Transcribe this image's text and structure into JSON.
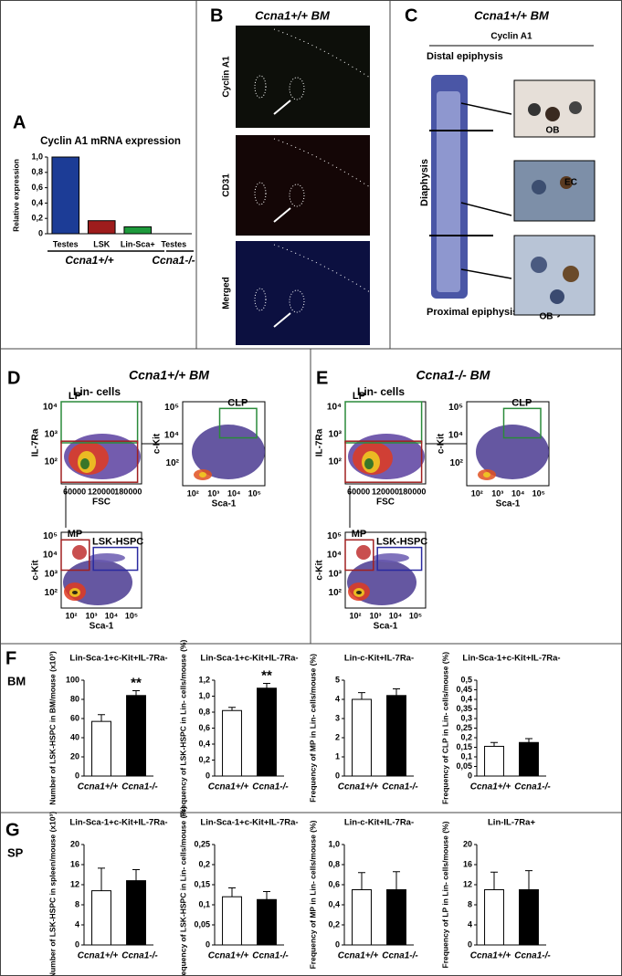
{
  "panel_labels": [
    "A",
    "B",
    "C",
    "D",
    "E",
    "F",
    "G"
  ],
  "row_labels": [
    "BM",
    "SP"
  ],
  "panel_A": {
    "group_labels": [
      "Ccna1+/+",
      "Ccna1-/-"
    ]
  },
  "panel_B": {
    "title": "Ccna1+/+ BM",
    "image_labels": [
      "Cyclin A1",
      "CD31",
      "Merged"
    ]
  },
  "panel_C": {
    "title": "Ccna1+/+ BM",
    "subtitle": "Cyclin A1",
    "regions": [
      "Distal epiphysis",
      "Diaphysis",
      "Proximal epiphysis metaphysis"
    ],
    "insets": [
      "OB",
      "EC",
      "OB"
    ]
  },
  "panel_D": {
    "title": "Ccna1+/+ BM",
    "population": "Lin- cells",
    "plots": [
      {
        "gates": [
          "LP"
        ],
        "ylabel": "IL-7Ra",
        "xlabel": "FSC",
        "yticks": [
          "10⁴",
          "10³",
          "10²"
        ],
        "xticks": [
          "60000",
          "120000",
          "180000"
        ]
      },
      {
        "gates": [
          "CLP"
        ],
        "ylabel": "c-Kit",
        "xlabel": "Sca-1",
        "yticks": [
          "10⁵",
          "10⁴",
          "10²"
        ],
        "xticks": [
          "10²",
          "10³",
          "10⁴",
          "10⁵"
        ]
      },
      {
        "gates": [
          "MP",
          "LSK-HSPC"
        ],
        "ylabel": "c-Kit",
        "xlabel": "Sca-1",
        "yticks": [
          "10⁵",
          "10⁴",
          "10³",
          "10²"
        ],
        "xticks": [
          "10²",
          "10³",
          "10⁴",
          "10⁵"
        ]
      }
    ]
  },
  "panel_E": {
    "title": "Ccna1-/- BM",
    "population": "Lin- cells",
    "plots": [
      {
        "gates": [
          "LP"
        ],
        "ylabel": "IL-7Ra",
        "xlabel": "FSC",
        "yticks": [
          "10⁴",
          "10³",
          "10²"
        ],
        "xticks": [
          "60000",
          "120000",
          "180000"
        ]
      },
      {
        "gates": [
          "CLP"
        ],
        "ylabel": "c-Kit",
        "xlabel": "Sca-1",
        "yticks": [
          "10⁵",
          "10⁴",
          "10²"
        ],
        "xticks": [
          "10²",
          "10³",
          "10⁴",
          "10⁵"
        ]
      },
      {
        "gates": [
          "MP",
          "LSK-HSPC"
        ],
        "ylabel": "c-Kit",
        "xlabel": "Sca-1",
        "yticks": [
          "10⁵",
          "10⁴",
          "10³",
          "10²"
        ],
        "xticks": [
          "10²",
          "10³",
          "10⁴",
          "10⁵"
        ]
      }
    ]
  },
  "chart_data": [
    {
      "type": "bar",
      "title": "Cyclin A1 mRNA expression",
      "y_label": "Relative expression",
      "categories": [
        "Testes",
        "LSK",
        "Lin-Sca+",
        "Testes"
      ],
      "values": [
        1.0,
        0.17,
        0.09,
        0
      ],
      "colors": [
        "#1c3c96",
        "#9e1c1c",
        "#1e9a3c",
        "#555555"
      ],
      "ylim": [
        0,
        1
      ],
      "yticks": [
        0,
        {
          "value": 0.2,
          "label": "0,2"
        },
        {
          "value": 0.4,
          "label": "0,4"
        },
        {
          "value": 0.6,
          "label": "0,6"
        },
        {
          "value": 0.8,
          "label": "0,8"
        },
        {
          "value": 1,
          "label": "1,0"
        }
      ]
    },
    {
      "type": "bar",
      "title": "Lin-Sca-1+c-Kit+IL-7Ra-",
      "y_label": "Number of LSK-HSPC in BM/mouse (x10³)",
      "categories": [
        "Ccna1+/+",
        "Ccna1-/-"
      ],
      "values": [
        57,
        84
      ],
      "errors": [
        7,
        5
      ],
      "colors": [
        "#ffffff",
        "#000000"
      ],
      "annotations": [
        null,
        "**"
      ],
      "ylim": [
        0,
        100
      ],
      "yticks": [
        0,
        20,
        40,
        60,
        80,
        100
      ]
    },
    {
      "type": "bar",
      "title": "Lin-Sca-1+c-Kit+IL-7Ra-",
      "y_label": "Frequency of LSK-HSPC in Lin- cells/mouse (%)",
      "categories": [
        "Ccna1+/+",
        "Ccna1-/-"
      ],
      "values": [
        0.82,
        1.1
      ],
      "errors": [
        0.04,
        0.06
      ],
      "colors": [
        "#ffffff",
        "#000000"
      ],
      "annotations": [
        null,
        "**"
      ],
      "ylim": [
        0,
        1.2
      ],
      "yticks": [
        0,
        {
          "value": 0.2,
          "label": "0,2"
        },
        {
          "value": 0.4,
          "label": "0,4"
        },
        {
          "value": 0.6,
          "label": "0,6"
        },
        {
          "value": 0.8,
          "label": "0,8"
        },
        {
          "value": 1,
          "label": "1,0"
        },
        {
          "value": 1.2,
          "label": "1,2"
        }
      ]
    },
    {
      "type": "bar",
      "title": "Lin-c-Kit+IL-7Ra-",
      "y_label": "Frequency of MP in Lin- cells/mouse (%)",
      "categories": [
        "Ccna1+/+",
        "Ccna1-/-"
      ],
      "values": [
        4.0,
        4.2
      ],
      "errors": [
        0.35,
        0.35
      ],
      "colors": [
        "#ffffff",
        "#000000"
      ],
      "ylim": [
        0,
        5
      ],
      "yticks": [
        0,
        1,
        2,
        3,
        4,
        5
      ]
    },
    {
      "type": "bar",
      "title": "Lin-Sca-1+c-Kit+IL-7Ra-",
      "y_label": "Frequency of CLP in Lin- cells/mouse (%)",
      "categories": [
        "Ccna1+/+",
        "Ccna1-/-"
      ],
      "values": [
        0.155,
        0.175
      ],
      "errors": [
        0.02,
        0.02
      ],
      "colors": [
        "#ffffff",
        "#000000"
      ],
      "ylim": [
        0,
        0.5
      ],
      "yticks": [
        0,
        {
          "value": 0.05,
          "label": "0,05"
        },
        {
          "value": 0.1,
          "label": "0,1"
        },
        {
          "value": 0.15,
          "label": "0,15"
        },
        {
          "value": 0.2,
          "label": "0,2"
        },
        {
          "value": 0.25,
          "label": "0,25"
        },
        {
          "value": 0.3,
          "label": "0,3"
        },
        {
          "value": 0.35,
          "label": "0,35"
        },
        {
          "value": 0.4,
          "label": "0,4"
        },
        {
          "value": 0.45,
          "label": "0,45"
        },
        {
          "value": 0.5,
          "label": "0,5"
        }
      ]
    },
    {
      "type": "bar",
      "title": "Lin-Sca-1+c-Kit+IL-7Ra-",
      "y_label": "Number of LSK-HSPC in spleen/mouse (x10³)",
      "categories": [
        "Ccna1+/+",
        "Ccna1-/-"
      ],
      "values": [
        10.8,
        12.8
      ],
      "errors": [
        4.5,
        2.2
      ],
      "colors": [
        "#ffffff",
        "#000000"
      ],
      "ylim": [
        0,
        20
      ],
      "yticks": [
        0,
        4,
        8,
        12,
        16,
        20
      ]
    },
    {
      "type": "bar",
      "title": "Lin-Sca-1+c-Kit+IL-7Ra-",
      "y_label": "Frequency of LSK-HSPC in Lin- cells/mouse (%)",
      "categories": [
        "Ccna1+/+",
        "Ccna1-/-"
      ],
      "values": [
        0.12,
        0.113
      ],
      "errors": [
        0.022,
        0.02
      ],
      "colors": [
        "#ffffff",
        "#000000"
      ],
      "ylim": [
        0,
        0.25
      ],
      "yticks": [
        0,
        {
          "value": 0.05,
          "label": "0,05"
        },
        {
          "value": 0.1,
          "label": "0,1"
        },
        {
          "value": 0.15,
          "label": "0,15"
        },
        {
          "value": 0.2,
          "label": "0,2"
        },
        {
          "value": 0.25,
          "label": "0,25"
        }
      ]
    },
    {
      "type": "bar",
      "title": "Lin-c-Kit+IL-7Ra-",
      "y_label": "Frequency of MP in Lin- cells/mouse (%)",
      "categories": [
        "Ccna1+/+",
        "Ccna1-/-"
      ],
      "values": [
        0.55,
        0.55
      ],
      "errors": [
        0.17,
        0.18
      ],
      "colors": [
        "#ffffff",
        "#000000"
      ],
      "ylim": [
        0,
        1
      ],
      "yticks": [
        0,
        {
          "value": 0.2,
          "label": "0,2"
        },
        {
          "value": 0.4,
          "label": "0,4"
        },
        {
          "value": 0.6,
          "label": "0,6"
        },
        {
          "value": 0.8,
          "label": "0,8"
        },
        {
          "value": 1,
          "label": "1,0"
        }
      ]
    },
    {
      "type": "bar",
      "title": "Lin-IL-7Ra+",
      "y_label": "Frequency of LP in Lin- cells/mouse (%)",
      "categories": [
        "Ccna1+/+",
        "Ccna1-/-"
      ],
      "values": [
        11,
        11
      ],
      "errors": [
        3.5,
        3.8
      ],
      "colors": [
        "#ffffff",
        "#000000"
      ],
      "ylim": [
        0,
        20
      ],
      "yticks": [
        0,
        4,
        8,
        12,
        16,
        20
      ]
    }
  ]
}
